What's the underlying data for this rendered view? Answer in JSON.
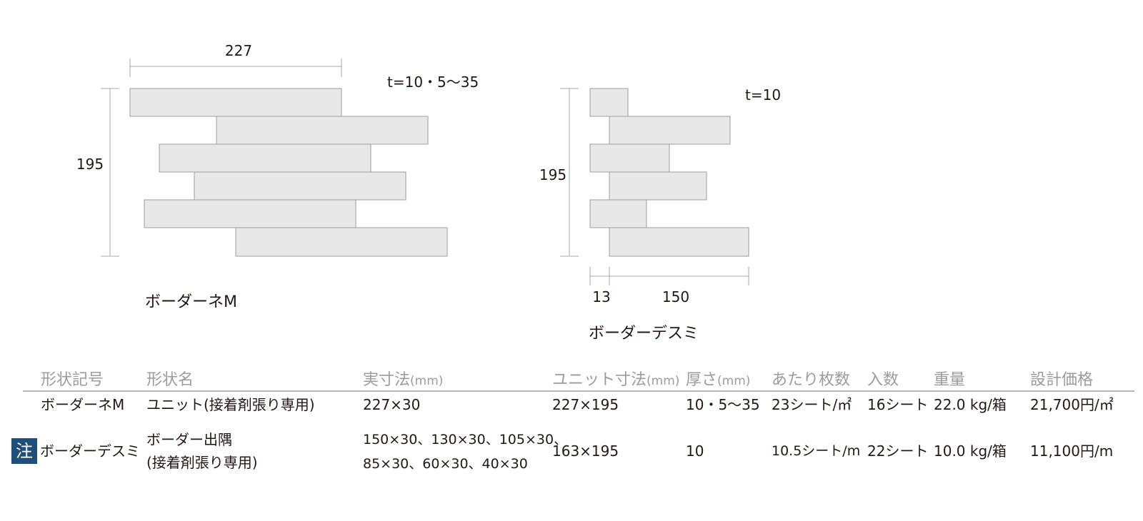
{
  "diagrams": {
    "left": {
      "width_label": "227",
      "height_label": "195",
      "thickness_label": "t=10・5〜35",
      "name": "ボーダーネM"
    },
    "right": {
      "height_label": "195",
      "thickness_label": "t=10",
      "offset_label": "13",
      "length_label": "150",
      "name": "ボーダーデスミ"
    }
  },
  "table": {
    "headers": {
      "shape_code": "形状記号",
      "shape_name": "形状名",
      "actual_size": "実寸法",
      "actual_size_unit": "(mm)",
      "unit_size": "ユニット寸法",
      "unit_size_unit": "(mm)",
      "thickness": "厚さ",
      "thickness_unit": "(mm)",
      "sheets_per": "あたり枚数",
      "quantity": "入数",
      "weight": "重量",
      "price": "設計価格"
    },
    "rows": [
      {
        "code": "ボーダーネM",
        "name_line1": "ユニット(接着剤張り専用)",
        "name_line2": "",
        "size_line1": "227×30",
        "size_line2": "",
        "unit_size": "227×195",
        "thickness": "10・5〜35",
        "per": "23シート/㎡",
        "qty": "16シート",
        "weight": "22.0 kg/箱",
        "price": "21,700円/㎡"
      },
      {
        "badge": "注",
        "code": "ボーダーデスミ",
        "name_line1": "ボーダー出隅",
        "name_line2": "(接着剤張り専用)",
        "size_line1": "150×30、130×30、105×30、",
        "size_line2": "85×30、60×30、40×30",
        "unit_size": "163×195",
        "thickness": "10",
        "per": "10.5シート/m",
        "qty": "22シート",
        "weight": "10.0 kg/箱",
        "price": "11,100円/m"
      }
    ]
  }
}
